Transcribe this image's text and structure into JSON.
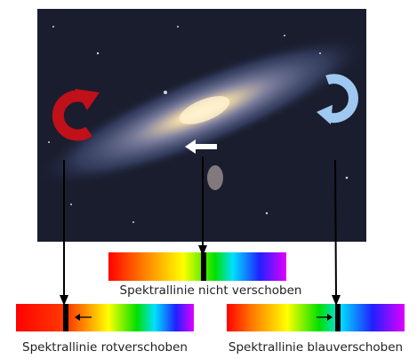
{
  "labels": {
    "unshifted": "Spektrallinie nicht verschoben",
    "redshifted": "Spektrallinie rotverschoben",
    "blueshifted": "Spektrallinie blauverschoben"
  }
}
